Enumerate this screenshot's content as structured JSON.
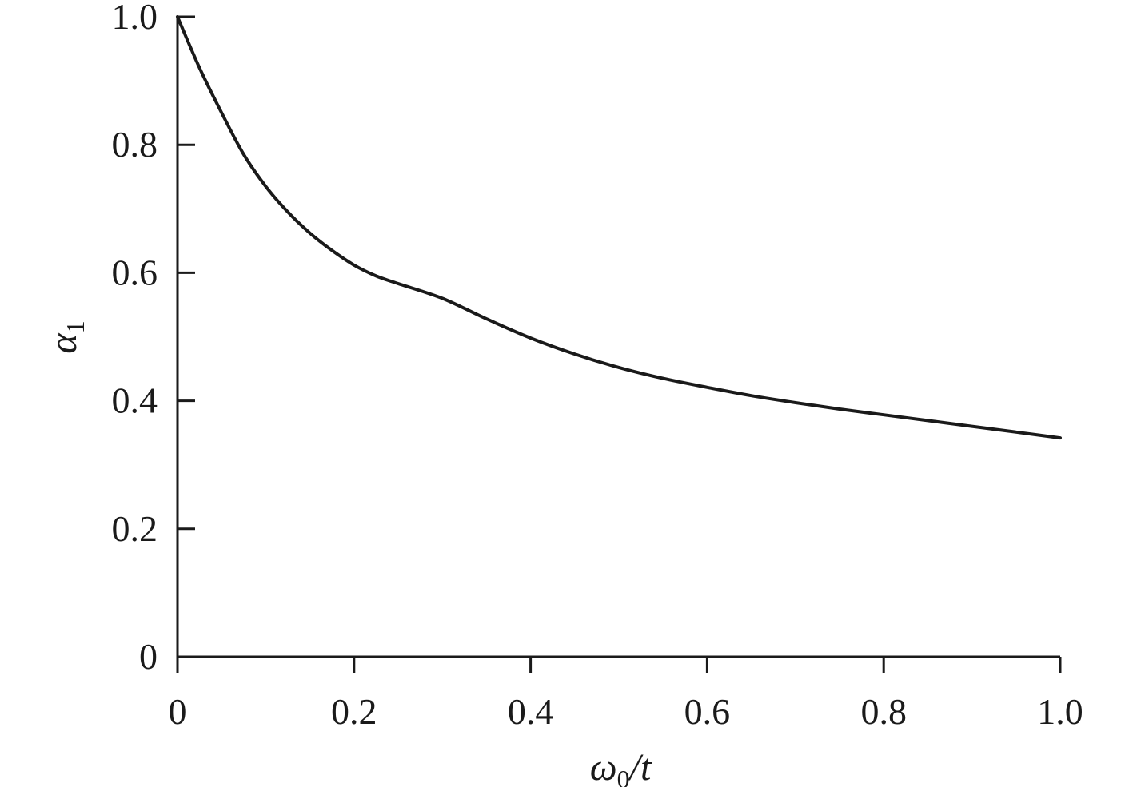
{
  "chart_data": {
    "type": "line",
    "title": "",
    "xlabel": {
      "main": "ω",
      "sub": "0",
      "tail": "/t"
    },
    "ylabel": {
      "main": "α",
      "sub": "1"
    },
    "xlim": [
      0,
      1.0
    ],
    "ylim": [
      0,
      1.0
    ],
    "x_ticks": [
      "0",
      "0.2",
      "0.4",
      "0.6",
      "0.8",
      "1.0"
    ],
    "y_ticks": [
      "0",
      "0.2",
      "0.4",
      "0.6",
      "0.8",
      "1.0"
    ],
    "grid": false,
    "legend": "none",
    "line_color": "#1a1a1a",
    "series": [
      {
        "x": [
          0.0,
          0.025,
          0.05,
          0.075,
          0.1,
          0.125,
          0.15,
          0.175,
          0.2,
          0.225,
          0.25,
          0.3,
          0.35,
          0.4,
          0.45,
          0.5,
          0.55,
          0.6,
          0.65,
          0.7,
          0.75,
          0.8,
          0.85,
          0.9,
          0.95,
          1.0
        ],
        "y": [
          1.0,
          0.92,
          0.85,
          0.785,
          0.735,
          0.695,
          0.662,
          0.635,
          0.612,
          0.595,
          0.583,
          0.56,
          0.528,
          0.498,
          0.473,
          0.452,
          0.435,
          0.421,
          0.408,
          0.397,
          0.387,
          0.378,
          0.369,
          0.36,
          0.351,
          0.342
        ]
      }
    ]
  }
}
